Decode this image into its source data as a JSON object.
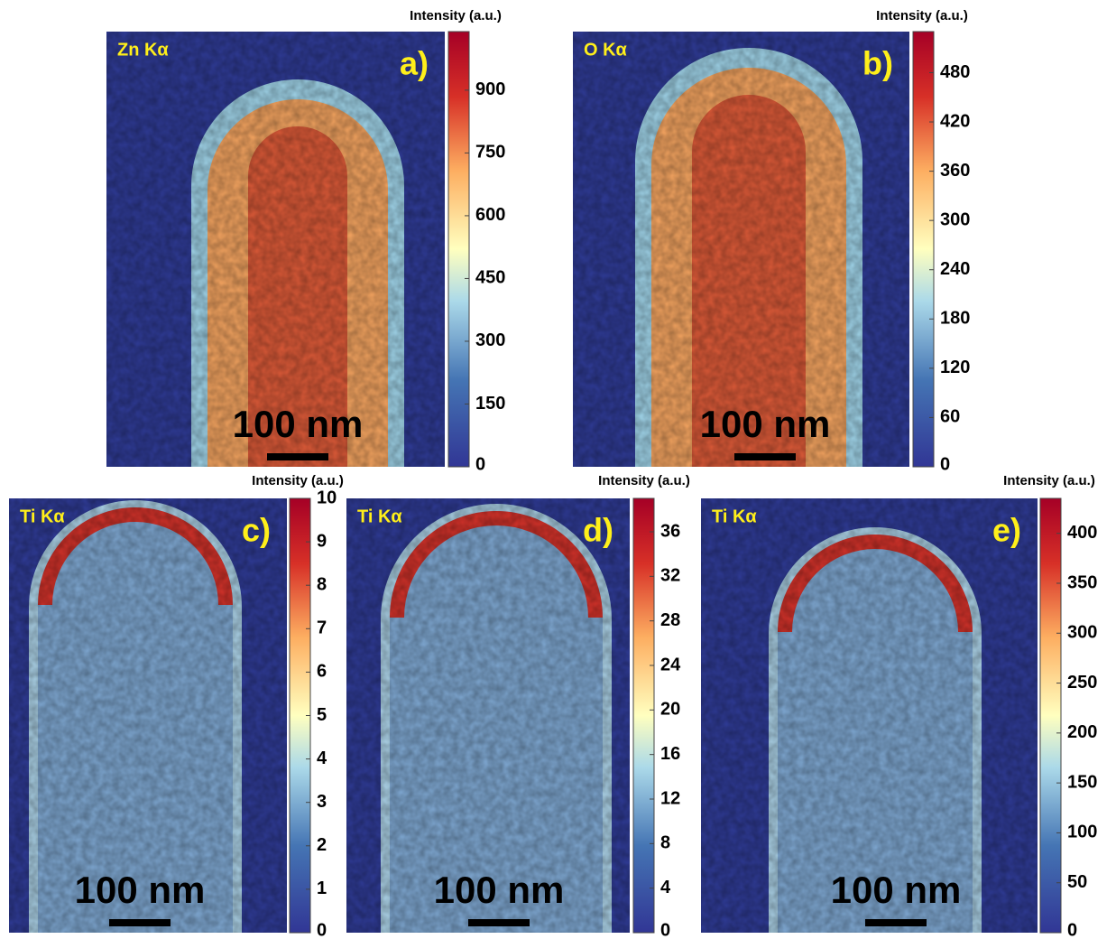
{
  "panels": [
    {
      "element": "Zn Kα",
      "letter": "a)",
      "scale_bar": "100 nm",
      "colorbar": {
        "title": "Intensity (a.u.)",
        "clim": [
          0,
          1040
        ],
        "ticks": [
          0,
          150,
          300,
          450,
          600,
          750,
          900
        ]
      }
    },
    {
      "element": "O Kα",
      "letter": "b)",
      "scale_bar": "100 nm",
      "colorbar": {
        "title": "Intensity (a.u.)",
        "clim": [
          0,
          530
        ],
        "ticks": [
          0,
          60,
          120,
          180,
          240,
          300,
          360,
          420,
          480
        ]
      }
    },
    {
      "element": "Ti Kα",
      "letter": "c)",
      "scale_bar": "100 nm",
      "colorbar": {
        "title": "Intensity (a.u.)",
        "clim": [
          0,
          10
        ],
        "ticks": [
          0,
          1,
          2,
          3,
          4,
          5,
          6,
          7,
          8,
          9,
          10
        ]
      }
    },
    {
      "element": "Ti Kα",
      "letter": "d)",
      "scale_bar": "100 nm",
      "colorbar": {
        "title": "Intensity (a.u.)",
        "clim": [
          0,
          39
        ],
        "ticks": [
          0,
          4,
          8,
          12,
          16,
          20,
          24,
          28,
          32,
          36
        ]
      }
    },
    {
      "element": "Ti Kα",
      "letter": "e)",
      "scale_bar": "100 nm",
      "colorbar": {
        "title": "Intensity (a.u.)",
        "clim": [
          0,
          435
        ],
        "ticks": [
          0,
          50,
          100,
          150,
          200,
          250,
          300,
          350,
          400
        ]
      }
    }
  ]
}
